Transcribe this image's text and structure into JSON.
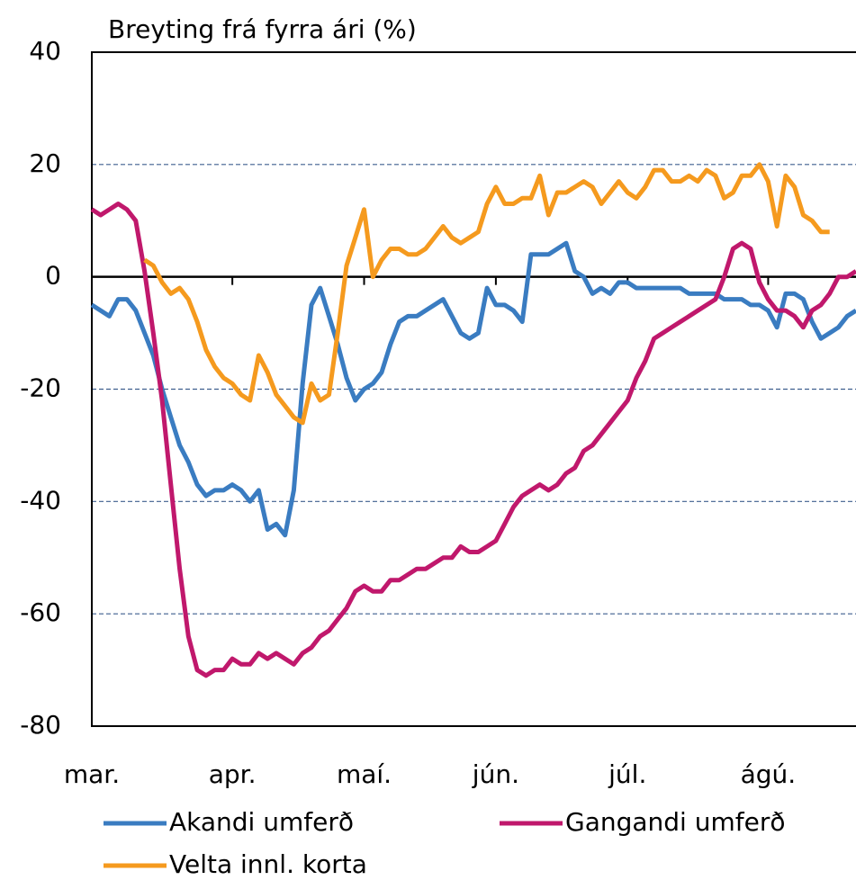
{
  "chart_data": {
    "type": "line",
    "title": "Breyting frá fyrra ári (%)",
    "categories": [
      "mar.",
      null,
      null,
      null,
      null,
      null,
      null,
      null,
      null,
      null,
      null,
      null,
      null,
      null,
      null,
      null,
      "apr.",
      null,
      null,
      null,
      null,
      null,
      null,
      null,
      null,
      null,
      null,
      null,
      null,
      null,
      null,
      "maí.",
      null,
      null,
      null,
      null,
      null,
      null,
      null,
      null,
      null,
      null,
      null,
      null,
      null,
      null,
      "jún.",
      null,
      null,
      null,
      null,
      null,
      null,
      null,
      null,
      null,
      null,
      null,
      null,
      null,
      null,
      "júl.",
      null,
      null,
      null,
      null,
      null,
      null,
      null,
      null,
      null,
      null,
      null,
      null,
      null,
      null,
      null,
      "ágú.",
      null,
      null,
      null,
      null,
      null,
      null,
      null,
      null,
      null,
      null
    ],
    "series": [
      {
        "name": "Akandi umferð",
        "color": "#3a7cc1",
        "values": [
          -5,
          -6,
          -7,
          -4,
          -4,
          -6,
          -10,
          -14,
          -20,
          -25,
          -30,
          -33,
          -37,
          -39,
          -38,
          -38,
          -37,
          -38,
          -40,
          -38,
          -45,
          -44,
          -46,
          -38,
          -19,
          -5,
          -2,
          -7,
          -12,
          -18,
          -22,
          -20,
          -19,
          -17,
          -12,
          -8,
          -7,
          -7,
          -6,
          -5,
          -4,
          -7,
          -10,
          -11,
          -10,
          -2,
          -5,
          -5,
          -6,
          -8,
          4,
          4,
          4,
          5,
          6,
          1,
          0,
          -3,
          -2,
          -3,
          -1,
          -1,
          -2,
          -2,
          -2,
          -2,
          -2,
          -2,
          -3,
          -3,
          -3,
          -3,
          -4,
          -4,
          -4,
          -5,
          -5,
          -6,
          -9,
          -3,
          -3,
          -4,
          -8,
          -11,
          -10,
          -9,
          -7,
          -6
        ]
      },
      {
        "name": "Gangandi umferð",
        "color": "#c0186c",
        "values": [
          12,
          11,
          12,
          13,
          12,
          10,
          1,
          -10,
          -22,
          -37,
          -52,
          -64,
          -70,
          -71,
          -70,
          -70,
          -68,
          -69,
          -69,
          -67,
          -68,
          -67,
          -68,
          -69,
          -67,
          -66,
          -64,
          -63,
          -61,
          -59,
          -56,
          -55,
          -56,
          -56,
          -54,
          -54,
          -53,
          -52,
          -52,
          -51,
          -50,
          -50,
          -48,
          -49,
          -49,
          -48,
          -47,
          -44,
          -41,
          -39,
          -38,
          -37,
          -38,
          -37,
          -35,
          -34,
          -31,
          -30,
          -28,
          -26,
          -24,
          -22,
          -18,
          -15,
          -11,
          -10,
          -9,
          -8,
          -7,
          -6,
          -5,
          -4,
          0,
          5,
          6,
          5,
          -1,
          -4,
          -6,
          -6,
          -7,
          -9,
          -6,
          -5,
          -3,
          0,
          0,
          1
        ]
      },
      {
        "name": "Velta innl. korta",
        "color": "#f59a1e",
        "values": [
          null,
          null,
          null,
          null,
          null,
          null,
          3,
          2,
          -1,
          -3,
          -2,
          -4,
          -8,
          -13,
          -16,
          -18,
          -19,
          -21,
          -22,
          -14,
          -17,
          -21,
          -23,
          -25,
          -26,
          -19,
          -22,
          -21,
          -10,
          2,
          7,
          12,
          0,
          3,
          5,
          5,
          4,
          4,
          5,
          7,
          9,
          7,
          6,
          7,
          8,
          13,
          16,
          13,
          13,
          14,
          14,
          18,
          11,
          15,
          15,
          16,
          17,
          16,
          13,
          15,
          17,
          15,
          14,
          16,
          19,
          19,
          17,
          17,
          18,
          17,
          19,
          18,
          14,
          15,
          18,
          18,
          20,
          17,
          9,
          18,
          16,
          11,
          10,
          8,
          8,
          null,
          null,
          null
        ]
      }
    ],
    "ylim": [
      -80,
      40
    ],
    "yticks": [
      -80,
      -60,
      -40,
      -20,
      0,
      20,
      40
    ],
    "grid": true
  }
}
